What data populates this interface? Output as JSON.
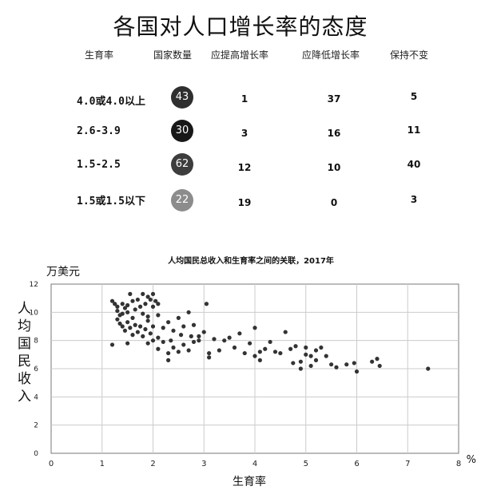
{
  "table": {
    "title": "各国对人口增长率的态度",
    "headers": [
      "生育率",
      "国家数量",
      "应提高增长率",
      "应降低增长率",
      "保持不变"
    ],
    "rows": [
      {
        "rate": "4.0或4.0以上",
        "count": "43",
        "raise": "1",
        "lower": "37",
        "keep": "5",
        "color": "#2f2f2f"
      },
      {
        "rate": "2.6-3.9",
        "count": "30",
        "raise": "3",
        "lower": "16",
        "keep": "11",
        "color": "#181818"
      },
      {
        "rate": "1.5-2.5",
        "count": "62",
        "raise": "12",
        "lower": "10",
        "keep": "40",
        "color": "#3d3d3d"
      },
      {
        "rate": "1.5或1.5以下",
        "count": "22",
        "raise": "19",
        "lower": "0",
        "keep": "3",
        "color": "#8c8c8c"
      }
    ]
  },
  "chart_data": {
    "type": "scatter",
    "title": "人均国民总收入和生育率之间的关联，2017年",
    "unit_label": "万美元",
    "ylabel": "人均国民收入",
    "xlabel": "生育率",
    "x_unit": "%",
    "xlim": [
      0,
      8
    ],
    "ylim": [
      0,
      12
    ],
    "xticks": [
      "0",
      "1",
      "2",
      "3",
      "4",
      "5",
      "6",
      "7",
      "8"
    ],
    "yticks": [
      "0",
      "2",
      "4",
      "6",
      "8",
      "10",
      "12"
    ],
    "grid": true,
    "points": [
      [
        1.2,
        10.8
      ],
      [
        1.25,
        10.6
      ],
      [
        1.3,
        10.4
      ],
      [
        1.3,
        10.1
      ],
      [
        1.35,
        9.8
      ],
      [
        1.4,
        9.9
      ],
      [
        1.4,
        10.6
      ],
      [
        1.45,
        10.3
      ],
      [
        1.5,
        10.5
      ],
      [
        1.5,
        10.0
      ],
      [
        1.55,
        11.3
      ],
      [
        1.6,
        10.8
      ],
      [
        1.6,
        9.6
      ],
      [
        1.65,
        10.2
      ],
      [
        1.7,
        10.9
      ],
      [
        1.75,
        10.4
      ],
      [
        1.8,
        11.3
      ],
      [
        1.8,
        9.9
      ],
      [
        1.85,
        10.6
      ],
      [
        1.9,
        11.1
      ],
      [
        1.9,
        9.7
      ],
      [
        1.95,
        10.9
      ],
      [
        2.0,
        10.4
      ],
      [
        2.0,
        11.3
      ],
      [
        2.05,
        10.8
      ],
      [
        2.1,
        10.6
      ],
      [
        2.1,
        9.8
      ],
      [
        1.3,
        9.5
      ],
      [
        1.35,
        9.2
      ],
      [
        1.4,
        9.0
      ],
      [
        1.45,
        8.7
      ],
      [
        1.5,
        9.3
      ],
      [
        1.55,
        8.9
      ],
      [
        1.6,
        8.4
      ],
      [
        1.65,
        9.1
      ],
      [
        1.7,
        8.6
      ],
      [
        1.75,
        9.0
      ],
      [
        1.8,
        8.3
      ],
      [
        1.85,
        8.8
      ],
      [
        1.9,
        9.4
      ],
      [
        1.95,
        8.5
      ],
      [
        2.0,
        9.0
      ],
      [
        2.1,
        8.2
      ],
      [
        2.2,
        8.9
      ],
      [
        2.3,
        9.3
      ],
      [
        2.35,
        8.0
      ],
      [
        2.4,
        8.7
      ],
      [
        2.5,
        9.6
      ],
      [
        2.55,
        8.4
      ],
      [
        2.6,
        9.0
      ],
      [
        2.7,
        10.0
      ],
      [
        2.75,
        8.3
      ],
      [
        2.8,
        9.1
      ],
      [
        2.9,
        8.0
      ],
      [
        3.0,
        8.6
      ],
      [
        3.05,
        10.6
      ],
      [
        1.2,
        7.7
      ],
      [
        1.5,
        7.8
      ],
      [
        1.9,
        7.8
      ],
      [
        2.0,
        8.0
      ],
      [
        2.1,
        7.4
      ],
      [
        2.2,
        7.9
      ],
      [
        2.3,
        7.1
      ],
      [
        2.3,
        6.6
      ],
      [
        2.4,
        7.5
      ],
      [
        2.5,
        7.2
      ],
      [
        2.6,
        7.7
      ],
      [
        2.7,
        7.3
      ],
      [
        2.8,
        7.9
      ],
      [
        2.9,
        8.3
      ],
      [
        3.1,
        7.1
      ],
      [
        3.1,
        6.8
      ],
      [
        3.2,
        8.1
      ],
      [
        3.3,
        7.3
      ],
      [
        3.4,
        8.0
      ],
      [
        3.5,
        8.2
      ],
      [
        3.6,
        7.5
      ],
      [
        3.7,
        8.5
      ],
      [
        3.8,
        7.1
      ],
      [
        3.9,
        7.8
      ],
      [
        4.0,
        8.9
      ],
      [
        4.0,
        6.9
      ],
      [
        4.1,
        7.2
      ],
      [
        4.1,
        6.6
      ],
      [
        4.2,
        7.4
      ],
      [
        4.3,
        7.9
      ],
      [
        4.4,
        7.2
      ],
      [
        4.5,
        7.1
      ],
      [
        4.6,
        8.6
      ],
      [
        4.7,
        7.4
      ],
      [
        4.75,
        6.4
      ],
      [
        4.8,
        7.6
      ],
      [
        4.9,
        6.0
      ],
      [
        4.9,
        6.5
      ],
      [
        5.0,
        7.5
      ],
      [
        5.0,
        7.0
      ],
      [
        5.1,
        6.9
      ],
      [
        5.1,
        6.2
      ],
      [
        5.2,
        7.3
      ],
      [
        5.2,
        6.6
      ],
      [
        5.3,
        7.5
      ],
      [
        5.4,
        6.9
      ],
      [
        5.5,
        6.3
      ],
      [
        5.6,
        6.1
      ],
      [
        5.8,
        6.3
      ],
      [
        5.95,
        6.4
      ],
      [
        6.0,
        5.8
      ],
      [
        6.3,
        6.5
      ],
      [
        6.4,
        6.7
      ],
      [
        6.45,
        6.2
      ],
      [
        7.4,
        6.0
      ]
    ]
  }
}
